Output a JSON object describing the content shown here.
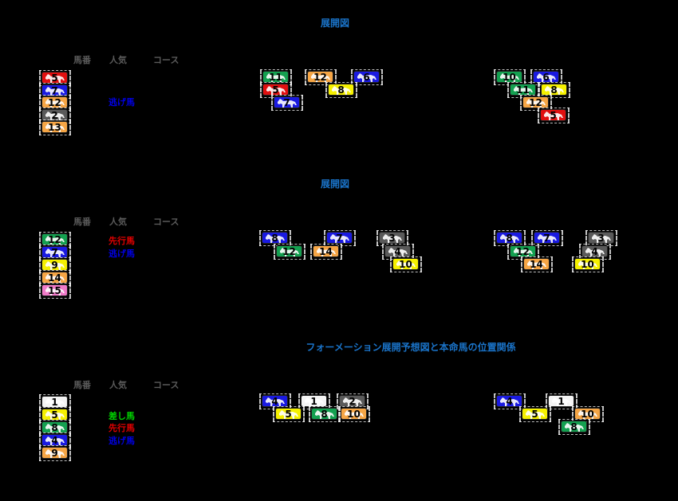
{
  "colors": {
    "title": "#1a73c8",
    "header": "#5a5a5a",
    "red": "#e01010",
    "blue": "#1a1ae0",
    "orange": "#f5a545",
    "gray": "#5a5a5a",
    "green": "#14a050",
    "yellow": "#f5f000",
    "pink": "#f07ac8",
    "white": "#f4f4f4",
    "tag_red": "#e00000",
    "tag_blue": "#0000e0",
    "tag_green": "#00d000"
  },
  "sections": [
    {
      "title": "展開図",
      "headers": [
        "馬番",
        "人気",
        "コース"
      ],
      "list": [
        {
          "num": "5",
          "color": "red"
        },
        {
          "num": "7",
          "color": "blue"
        },
        {
          "num": "12",
          "color": "orange"
        },
        {
          "num": "2",
          "color": "gray"
        },
        {
          "num": "13",
          "color": "orange"
        }
      ],
      "tags": [
        {
          "text": "逃げ馬",
          "color": "tag_blue"
        }
      ],
      "start_formation": [
        {
          "num": "11",
          "color": "green"
        },
        {
          "num": "12",
          "color": "orange"
        },
        {
          "num": "6",
          "color": "blue"
        },
        {
          "num": "5",
          "color": "red"
        },
        {
          "num": "8",
          "color": "yellow"
        },
        {
          "num": "7",
          "color": "blue"
        }
      ],
      "corner_formation": [
        {
          "num": "10",
          "color": "green"
        },
        {
          "num": "6",
          "color": "blue"
        },
        {
          "num": "11",
          "color": "green"
        },
        {
          "num": "8",
          "color": "yellow"
        },
        {
          "num": "12",
          "color": "orange"
        },
        {
          "num": "5",
          "color": "red"
        }
      ]
    },
    {
      "title": "展開図",
      "headers": [
        "馬番",
        "人気",
        "コース"
      ],
      "list": [
        {
          "num": "12",
          "color": "green"
        },
        {
          "num": "7",
          "color": "blue"
        },
        {
          "num": "9",
          "color": "yellow"
        },
        {
          "num": "14",
          "color": "orange"
        },
        {
          "num": "15",
          "color": "pink"
        }
      ],
      "tags": [
        {
          "text": "先行馬",
          "color": "tag_red"
        },
        {
          "text": "逃げ馬",
          "color": "tag_blue"
        }
      ],
      "start_formation": [
        {
          "num": "8",
          "color": "blue"
        },
        {
          "num": "7",
          "color": "blue"
        },
        {
          "num": "3",
          "color": "gray"
        },
        {
          "num": "12",
          "color": "green"
        },
        {
          "num": "14",
          "color": "orange"
        },
        {
          "num": "4",
          "color": "gray"
        },
        {
          "num": "10",
          "color": "yellow"
        }
      ],
      "corner_formation": [
        {
          "num": "8",
          "color": "blue"
        },
        {
          "num": "7",
          "color": "blue"
        },
        {
          "num": "3",
          "color": "gray"
        },
        {
          "num": "12",
          "color": "green"
        },
        {
          "num": "4",
          "color": "gray"
        },
        {
          "num": "14",
          "color": "orange"
        },
        {
          "num": "10",
          "color": "yellow"
        }
      ]
    },
    {
      "title": "フォーメーション展開予想図と本命馬の位置関係",
      "headers": [
        "馬番",
        "人気",
        "コース"
      ],
      "list": [
        {
          "num": "1",
          "color": "white"
        },
        {
          "num": "5",
          "color": "yellow"
        },
        {
          "num": "8",
          "color": "green"
        },
        {
          "num": "4",
          "color": "blue"
        },
        {
          "num": "9",
          "color": "orange"
        }
      ],
      "tags": [
        {
          "text": "差し馬",
          "color": "tag_green"
        },
        {
          "text": "先行馬",
          "color": "tag_red"
        },
        {
          "text": "逃げ馬",
          "color": "tag_blue"
        }
      ],
      "start_formation": [
        {
          "num": "4",
          "color": "blue"
        },
        {
          "num": "1",
          "color": "white"
        },
        {
          "num": "2",
          "color": "gray"
        },
        {
          "num": "5",
          "color": "yellow"
        },
        {
          "num": "8",
          "color": "green"
        },
        {
          "num": "10",
          "color": "orange"
        }
      ],
      "corner_formation": [
        {
          "num": "4",
          "color": "blue"
        },
        {
          "num": "1",
          "color": "white"
        },
        {
          "num": "5",
          "color": "yellow"
        },
        {
          "num": "10",
          "color": "orange"
        },
        {
          "num": "8",
          "color": "green"
        }
      ]
    }
  ]
}
